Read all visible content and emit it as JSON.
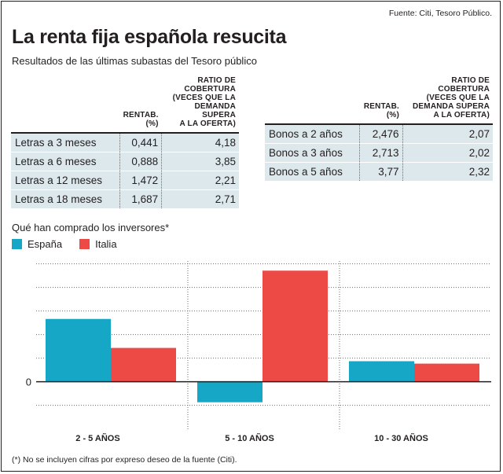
{
  "source": "Fuente: Citi,  Tesoro Público.",
  "title": "La renta fija española resucita",
  "subtitle": "Resultados de las últimas subastas del Tesoro público",
  "tables": {
    "headers": {
      "rent_line1": "RENTAB.",
      "rent_line2": "(%)",
      "ratio_line1": "RATIO DE",
      "ratio_line2": "COBERTURA",
      "ratio_line3": "(VECES QUE LA",
      "ratio_line4": "DEMANDA SUPERA",
      "ratio_line5": "A LA OFERTA)"
    },
    "letras": [
      {
        "name": "Letras a 3 meses",
        "rent": "0,441",
        "ratio": "4,18"
      },
      {
        "name": "Letras a 6 meses",
        "rent": "0,888",
        "ratio": "3,85"
      },
      {
        "name": "Letras a 12 meses",
        "rent": "1,472",
        "ratio": "2,21"
      },
      {
        "name": "Letras a 18 meses",
        "rent": "1,687",
        "ratio": "2,71"
      }
    ],
    "bonos": [
      {
        "name": "Bonos a 2 años",
        "rent": "2,476",
        "ratio": "2,07"
      },
      {
        "name": "Bonos a 3 años",
        "rent": "2,713",
        "ratio": "2,02"
      },
      {
        "name": "Bonos a 5 años",
        "rent": "3,77",
        "ratio": "2,32"
      }
    ]
  },
  "chart_heading": "Qué han comprado los inversores*",
  "footnote": "(*) No se incluyen cifras por expreso deseo de la fuente (Citi).",
  "colors": {
    "espana": "#17a7c6",
    "italia": "#ee4a45",
    "row_shade": "#dde8ec"
  },
  "chart_data": {
    "type": "bar",
    "categories": [
      "2 - 5 AÑOS",
      "5 - 10 AÑOS",
      "10 - 30 AÑOS"
    ],
    "series": [
      {
        "name": "España",
        "values": [
          2.6,
          -0.85,
          0.85
        ]
      },
      {
        "name": "Italia",
        "values": [
          1.4,
          4.6,
          0.75
        ]
      }
    ],
    "ytick_labels": [
      "0"
    ],
    "ylim": [
      -1.9,
      5.0
    ],
    "grid": true,
    "legend": "top-left"
  }
}
